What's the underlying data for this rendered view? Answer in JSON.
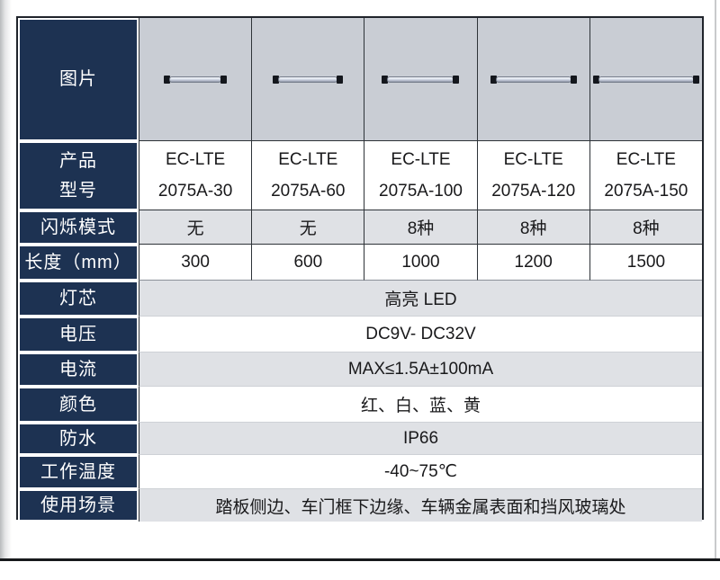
{
  "header": {
    "image_label": "图片",
    "product_image_icon": "led-light-bar"
  },
  "product": {
    "label1": "产品",
    "label2": "型号",
    "values": [
      {
        "series": "EC-LTE",
        "model": "2075A-30"
      },
      {
        "series": "EC-LTE",
        "model": "2075A-60"
      },
      {
        "series": "EC-LTE",
        "model": "2075A-100"
      },
      {
        "series": "EC-LTE",
        "model": "2075A-120"
      },
      {
        "series": "EC-LTE",
        "model": "2075A-150"
      }
    ]
  },
  "flash": {
    "label": "闪烁模式",
    "values": [
      "无",
      "无",
      "8种",
      "8种",
      "8种"
    ]
  },
  "length": {
    "label": "长度（mm）",
    "values": [
      "300",
      "600",
      "1000",
      "1200",
      "1500"
    ]
  },
  "specs": [
    {
      "label": "灯芯",
      "value": "高亮 LED"
    },
    {
      "label": "电压",
      "value": "DC9V- DC32V"
    },
    {
      "label": "电流",
      "value": "MAX≤1.5A±100mA"
    },
    {
      "label": "颜色",
      "value": "红、白、蓝、黄"
    },
    {
      "label": "防水",
      "value": "IP66"
    },
    {
      "label": "工作温度",
      "value": "-40~75℃"
    },
    {
      "label": "使用场景",
      "value": "踏板侧边、车门框下边缘、车辆金属表面和挡风玻璃处"
    }
  ],
  "colors": {
    "label_bg": "#1d3252",
    "image_row_bg": "#c9cdd4",
    "alt_row_bg": "#dfe1e5",
    "table_border": "#20242b"
  }
}
